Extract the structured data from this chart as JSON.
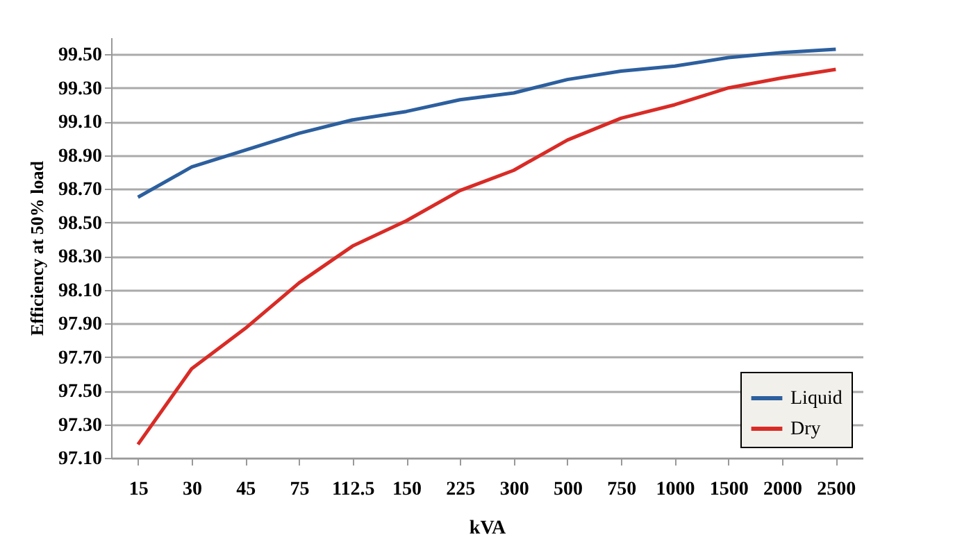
{
  "chart_data": {
    "type": "line",
    "xlabel": "kVA",
    "ylabel": "Efficiency at 50% load",
    "categories": [
      "15",
      "30",
      "45",
      "75",
      "112.5",
      "150",
      "225",
      "300",
      "500",
      "750",
      "1000",
      "1500",
      "2000",
      "2500"
    ],
    "series": [
      {
        "name": "Liquid",
        "color": "#2c5f9e",
        "values": [
          98.65,
          98.83,
          98.93,
          99.03,
          99.11,
          99.16,
          99.23,
          99.27,
          99.35,
          99.4,
          99.43,
          99.48,
          99.51,
          99.53
        ]
      },
      {
        "name": "Dry",
        "color": "#d92b26",
        "values": [
          97.18,
          97.63,
          97.87,
          98.14,
          98.36,
          98.51,
          98.69,
          98.81,
          98.99,
          99.12,
          99.2,
          99.3,
          99.36,
          99.41
        ]
      }
    ],
    "ylim": [
      97.1,
      99.6
    ],
    "yticks": [
      {
        "value": 97.1,
        "label": "97.10"
      },
      {
        "value": 97.3,
        "label": "97.30"
      },
      {
        "value": 97.5,
        "label": "97.50"
      },
      {
        "value": 97.7,
        "label": "97.70"
      },
      {
        "value": 97.9,
        "label": "97.90"
      },
      {
        "value": 98.1,
        "label": "98.10"
      },
      {
        "value": 98.3,
        "label": "98.30"
      },
      {
        "value": 98.5,
        "label": "98.50"
      },
      {
        "value": 98.7,
        "label": "98.70"
      },
      {
        "value": 98.9,
        "label": "98.90"
      },
      {
        "value": 99.1,
        "label": "99.10"
      },
      {
        "value": 99.3,
        "label": "99.30"
      },
      {
        "value": 99.5,
        "label": "99.50"
      }
    ],
    "grid": "y",
    "legend": "bottom right",
    "marker": "none",
    "line_style": "solid"
  }
}
